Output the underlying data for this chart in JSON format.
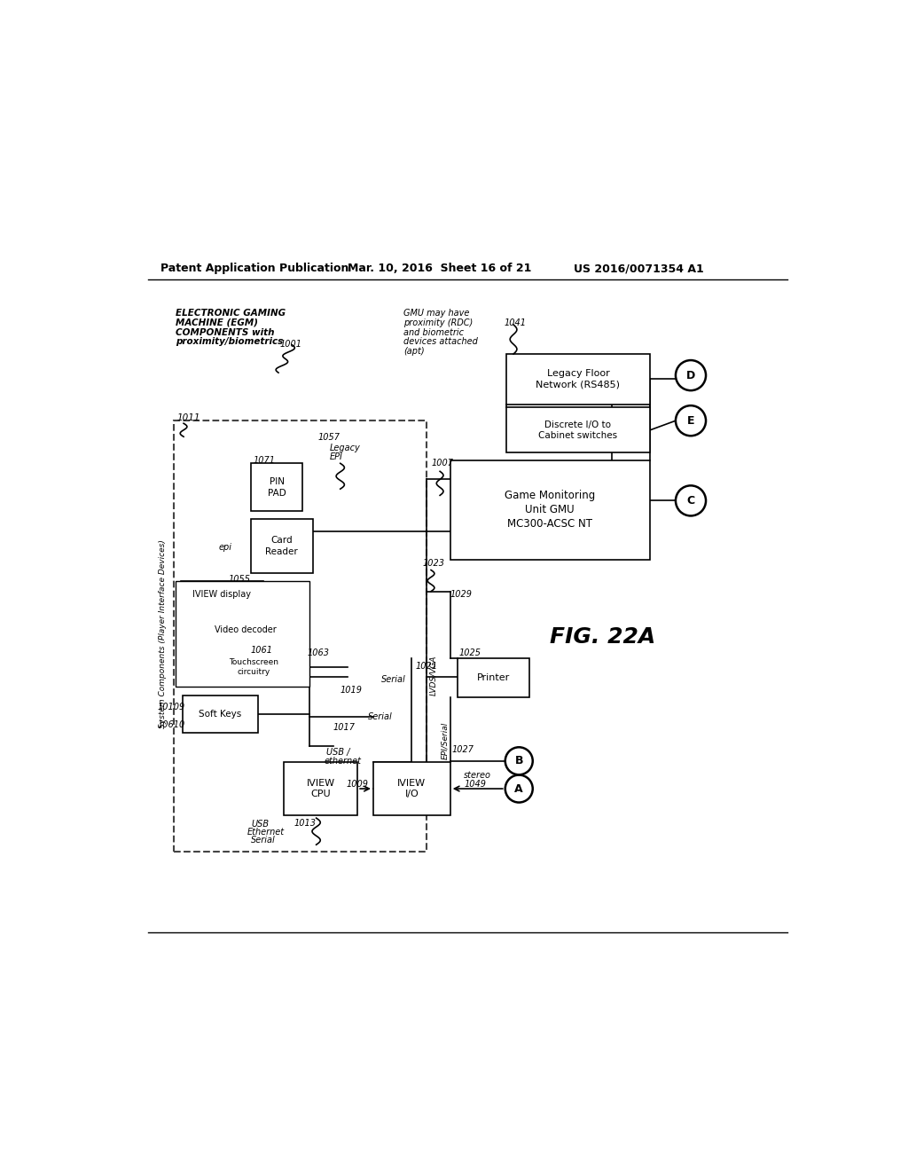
{
  "header_left": "Patent Application Publication",
  "header_mid": "Mar. 10, 2016  Sheet 16 of 21",
  "header_right": "US 2016/0071354 A1",
  "fig_label": "FIG. 22A",
  "bg": "#ffffff",
  "lc": "#000000"
}
